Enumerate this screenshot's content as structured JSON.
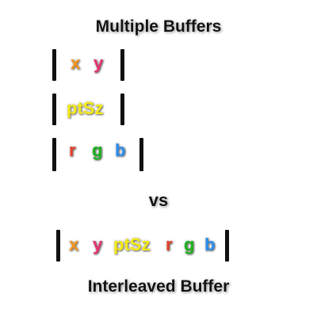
{
  "title": "Multiple Buffers",
  "separator": "vs",
  "footer": "Interleaved Buffer",
  "buffers": [
    {
      "items": [
        "x",
        "y"
      ]
    },
    {
      "items": [
        "ptSz"
      ]
    },
    {
      "items": [
        "r",
        "g",
        "b"
      ]
    }
  ],
  "interleaved": {
    "items": [
      "x",
      "y",
      "ptSz",
      "r",
      "g",
      "b"
    ]
  },
  "colors": {
    "x": "#f7941d",
    "y": "#e8336d",
    "ptSz": "#f5ea14",
    "r": "#e8402a",
    "g": "#1db31d",
    "b": "#2d8ef0",
    "bar": "#111111"
  }
}
